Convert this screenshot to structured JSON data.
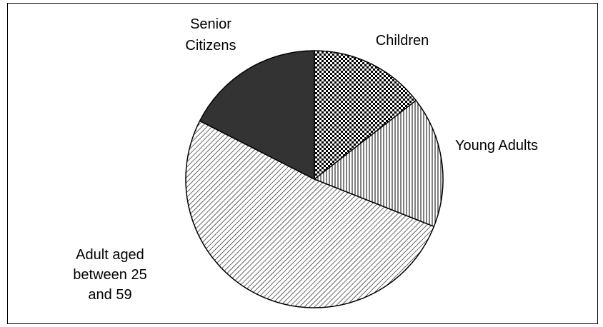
{
  "chart_data": {
    "type": "pie",
    "title": "",
    "start_angle_deg": 0,
    "direction": "clockwise",
    "slices": [
      {
        "label": [
          "Children"
        ],
        "value": 14.5,
        "pattern": "checker",
        "color": "#000000"
      },
      {
        "label": [
          "Young Adults"
        ],
        "value": 16.5,
        "pattern": "vertical-lines",
        "color": "#000000"
      },
      {
        "label": [
          "Adult aged",
          "between 25",
          "and 59"
        ],
        "value": 51.5,
        "pattern": "diagonal-lines",
        "color": "#000000"
      },
      {
        "label": [
          "Senior",
          "Citizens"
        ],
        "value": 17.5,
        "pattern": "solid",
        "color": "#333333"
      }
    ],
    "legend": "none",
    "data_labels": "outside"
  }
}
